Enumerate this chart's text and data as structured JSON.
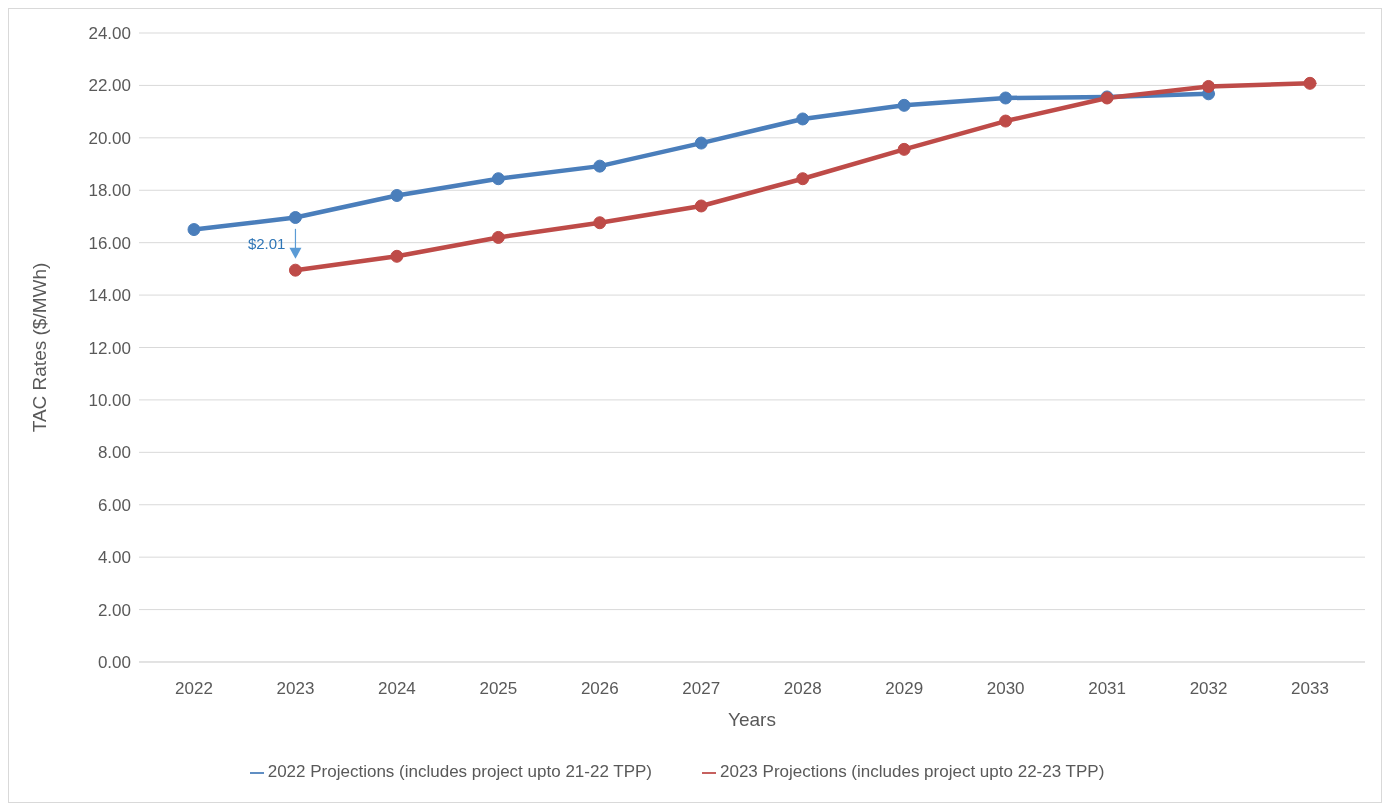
{
  "chart_data": {
    "type": "line",
    "xlabel": "Years",
    "ylabel": "TAC Rates ($/MWh)",
    "categories": [
      "2022",
      "2023",
      "2024",
      "2025",
      "2026",
      "2027",
      "2028",
      "2029",
      "2030",
      "2031",
      "2032",
      "2033"
    ],
    "series": [
      {
        "name": "2022 Projections (includes project upto 21-22 TPP)",
        "color": "#4a7ebb",
        "values": [
          16.5,
          16.96,
          17.8,
          18.44,
          18.92,
          19.8,
          20.72,
          21.24,
          21.52,
          21.56,
          21.68,
          null
        ]
      },
      {
        "name": "2023 Projections (includes project upto 22-23 TPP)",
        "color": "#be4b48",
        "values": [
          null,
          14.95,
          15.48,
          16.2,
          16.76,
          17.4,
          18.44,
          19.56,
          20.64,
          21.52,
          21.96,
          22.08
        ]
      }
    ],
    "ylim": [
      0,
      24
    ],
    "yticks": [
      {
        "value": 0,
        "label": "0.00"
      },
      {
        "value": 2,
        "label": "2.00"
      },
      {
        "value": 4,
        "label": "4.00"
      },
      {
        "value": 6,
        "label": "6.00"
      },
      {
        "value": 8,
        "label": "8.00"
      },
      {
        "value": 10,
        "label": "10.00"
      },
      {
        "value": 12,
        "label": "12.00"
      },
      {
        "value": 14,
        "label": "14.00"
      },
      {
        "value": 16,
        "label": "16.00"
      },
      {
        "value": 18,
        "label": "18.00"
      },
      {
        "value": 20,
        "label": "20.00"
      },
      {
        "value": 22,
        "label": "22.00"
      },
      {
        "value": 24,
        "label": "24.00"
      }
    ],
    "annotations": [
      "$2.01"
    ],
    "grid": "y",
    "legend": "bottom",
    "marker": "circle",
    "line_style": "solid"
  }
}
